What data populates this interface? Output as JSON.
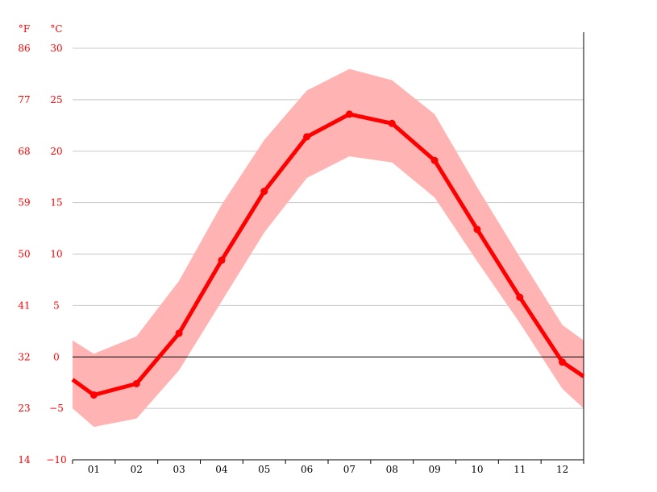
{
  "chart_data": {
    "type": "line",
    "title": "",
    "xlabel": "",
    "ylabel": "°C",
    "y2label": "°F",
    "categories": [
      "01",
      "02",
      "03",
      "04",
      "05",
      "06",
      "07",
      "08",
      "09",
      "10",
      "11",
      "12"
    ],
    "series": [
      {
        "name": "",
        "kind": "mean",
        "values": [
          -3.7,
          -2.6,
          2.3,
          9.4,
          16.1,
          21.4,
          23.6,
          22.7,
          19.1,
          12.4,
          5.8,
          -0.5
        ]
      },
      {
        "name": "",
        "kind": "range-min",
        "values": [
          -6.8,
          -6.0,
          -1.3,
          5.4,
          12.1,
          17.4,
          19.5,
          18.9,
          15.5,
          9.3,
          3.3,
          -3.1
        ]
      },
      {
        "name": "",
        "kind": "range-max",
        "values": [
          0.3,
          2.0,
          7.4,
          14.8,
          21.1,
          25.9,
          28.0,
          26.9,
          23.6,
          16.5,
          9.7,
          3.1
        ]
      }
    ],
    "edge_values": {
      "mean_start": -2.2,
      "mean_end": -1.9,
      "min_start": -5.0,
      "min_end": -5.0,
      "max_start": 1.6,
      "max_end": 1.6
    },
    "y_ticks_c": [
      "−10",
      "−5",
      "0",
      "5",
      "10",
      "15",
      "20",
      "25",
      "30"
    ],
    "y_ticks_f": [
      "14",
      "23",
      "32",
      "41",
      "50",
      "59",
      "68",
      "77",
      "86"
    ],
    "ylim": [
      -10,
      30
    ],
    "grid": true,
    "legend": "none",
    "colors": {
      "line": "#ff0000",
      "band": "#ffb3b3",
      "grid": "#c8c8c8",
      "zero": "#000000",
      "tick_labels": "#ff0000",
      "month_labels": "#000000"
    }
  }
}
